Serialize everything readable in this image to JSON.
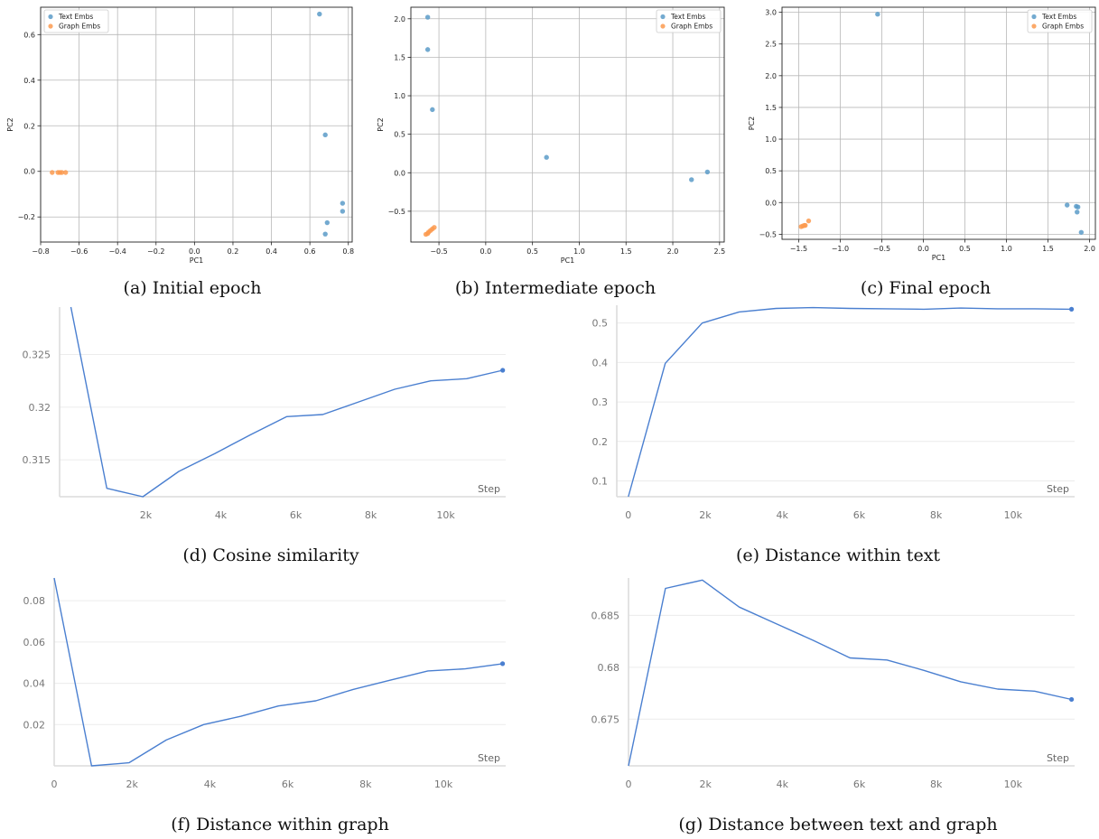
{
  "captions": {
    "a": "(a) Initial epoch",
    "b": "(b) Intermediate epoch",
    "c": "(c) Final epoch",
    "d": "(d) Cosine similarity",
    "e": "(e) Distance within text",
    "f": "(f) Distance within graph",
    "g": "(g) Distance between text and graph"
  },
  "colors": {
    "text_embs": "#5b9bc8",
    "graph_embs": "#fb9a4f",
    "line": "#4a7fd0",
    "grid": "#b8b8b8"
  },
  "chart_data": [
    {
      "id": "a",
      "type": "scatter",
      "xlabel": "PC1",
      "ylabel": "PC2",
      "xlim": [
        -0.8,
        0.82
      ],
      "ylim": [
        -0.31,
        0.72
      ],
      "xticks": [
        -0.8,
        -0.6,
        -0.4,
        -0.2,
        0.0,
        0.2,
        0.4,
        0.6,
        0.8
      ],
      "xtick_labels": [
        "−0.8",
        "−0.6",
        "−0.4",
        "−0.2",
        "0.0",
        "0.2",
        "0.4",
        "0.6",
        "0.8"
      ],
      "yticks": [
        -0.2,
        0.0,
        0.2,
        0.4,
        0.6
      ],
      "ytick_labels": [
        "−0.2",
        "0.0",
        "0.2",
        "0.4",
        "0.6"
      ],
      "grid": true,
      "legend": "top-left",
      "series": [
        {
          "name": "Text Embs",
          "points": [
            [
              0.65,
              0.69
            ],
            [
              0.68,
              0.16
            ],
            [
              0.77,
              -0.14
            ],
            [
              0.77,
              -0.175
            ],
            [
              0.69,
              -0.225
            ],
            [
              0.68,
              -0.275
            ]
          ]
        },
        {
          "name": "Graph Embs",
          "points": [
            [
              -0.74,
              -0.005
            ],
            [
              -0.71,
              -0.005
            ],
            [
              -0.7,
              -0.005
            ],
            [
              -0.69,
              -0.005
            ],
            [
              -0.67,
              -0.005
            ]
          ]
        }
      ]
    },
    {
      "id": "b",
      "type": "scatter",
      "xlabel": "PC1",
      "ylabel": "PC2",
      "xlim": [
        -0.8,
        2.55
      ],
      "ylim": [
        -0.9,
        2.15
      ],
      "xticks": [
        -0.5,
        0.0,
        0.5,
        1.0,
        1.5,
        2.0,
        2.5
      ],
      "xtick_labels": [
        "−0.5",
        "0.0",
        "0.5",
        "1.0",
        "1.5",
        "2.0",
        "2.5"
      ],
      "yticks": [
        -0.5,
        0.0,
        0.5,
        1.0,
        1.5,
        2.0
      ],
      "ytick_labels": [
        "−0.5",
        "0.0",
        "0.5",
        "1.0",
        "1.5",
        "2.0"
      ],
      "grid": true,
      "legend": "top-right",
      "series": [
        {
          "name": "Text Embs",
          "points": [
            [
              -0.62,
              2.02
            ],
            [
              -0.62,
              1.6
            ],
            [
              -0.57,
              0.82
            ],
            [
              0.65,
              0.2
            ],
            [
              2.2,
              -0.09
            ],
            [
              2.37,
              0.01
            ]
          ]
        },
        {
          "name": "Graph Embs",
          "points": [
            [
              -0.64,
              -0.8
            ],
            [
              -0.62,
              -0.79
            ],
            [
              -0.61,
              -0.77
            ],
            [
              -0.59,
              -0.75
            ],
            [
              -0.57,
              -0.73
            ],
            [
              -0.55,
              -0.71
            ]
          ]
        }
      ]
    },
    {
      "id": "c",
      "type": "scatter",
      "xlabel": "PC1",
      "ylabel": "PC2",
      "xlim": [
        -1.7,
        2.07
      ],
      "ylim": [
        -0.58,
        3.08
      ],
      "xticks": [
        -1.5,
        -1.0,
        -0.5,
        0.0,
        0.5,
        1.0,
        1.5,
        2.0
      ],
      "xtick_labels": [
        "−1.5",
        "−1.0",
        "−0.5",
        "0.0",
        "0.5",
        "1.0",
        "1.5",
        "2.0"
      ],
      "yticks": [
        -0.5,
        0.0,
        0.5,
        1.0,
        1.5,
        2.0,
        2.5,
        3.0
      ],
      "ytick_labels": [
        "−0.5",
        "0.0",
        "0.5",
        "1.0",
        "1.5",
        "2.0",
        "2.5",
        "3.0"
      ],
      "grid": true,
      "legend": "top-right",
      "series": [
        {
          "name": "Text Embs",
          "points": [
            [
              -0.55,
              2.97
            ],
            [
              1.73,
              -0.04
            ],
            [
              1.84,
              -0.06
            ],
            [
              1.86,
              -0.07
            ],
            [
              1.85,
              -0.15
            ],
            [
              1.9,
              -0.47
            ]
          ]
        },
        {
          "name": "Graph Embs",
          "points": [
            [
              -1.47,
              -0.38
            ],
            [
              -1.45,
              -0.37
            ],
            [
              -1.43,
              -0.36
            ],
            [
              -1.42,
              -0.36
            ],
            [
              -1.38,
              -0.29
            ]
          ]
        }
      ]
    },
    {
      "id": "d",
      "type": "line",
      "xlabel": "Step",
      "ylabel": "",
      "xlim": [
        -300,
        11600
      ],
      "ylim": [
        0.3115,
        0.3295
      ],
      "xticks": [
        2000,
        4000,
        6000,
        8000,
        10000
      ],
      "xtick_labels": [
        "2k",
        "4k",
        "6k",
        "8k",
        "10k"
      ],
      "yticks": [
        0.315,
        0.32,
        0.325
      ],
      "ytick_labels": [
        "0.315",
        "0.32",
        "0.325"
      ],
      "grid": true,
      "series": [
        {
          "x": [
            0,
            960,
            1920,
            2880,
            3840,
            4800,
            5760,
            6720,
            7680,
            8640,
            9600,
            10560,
            11520
          ],
          "values": [
            0.3295,
            0.3123,
            0.3115,
            0.3139,
            0.3156,
            0.3174,
            0.3191,
            0.3193,
            0.3205,
            0.3217,
            0.3225,
            0.3227,
            0.3235
          ]
        }
      ]
    },
    {
      "id": "e",
      "type": "line",
      "xlabel": "Step",
      "ylabel": "",
      "xlim": [
        -300,
        11600
      ],
      "ylim": [
        0.06,
        0.545
      ],
      "xticks": [
        0,
        2000,
        4000,
        6000,
        8000,
        10000
      ],
      "xtick_labels": [
        "0",
        "2k",
        "4k",
        "6k",
        "8k",
        "10k"
      ],
      "yticks": [
        0.1,
        0.2,
        0.3,
        0.4,
        0.5
      ],
      "ytick_labels": [
        "0.1",
        "0.2",
        "0.3",
        "0.4",
        "0.5"
      ],
      "grid": true,
      "series": [
        {
          "x": [
            0,
            960,
            1920,
            2880,
            3840,
            4800,
            5760,
            6720,
            7680,
            8640,
            9600,
            10560,
            11520
          ],
          "values": [
            0.06,
            0.398,
            0.5,
            0.528,
            0.537,
            0.539,
            0.537,
            0.536,
            0.535,
            0.538,
            0.536,
            0.536,
            0.535
          ]
        }
      ]
    },
    {
      "id": "f",
      "type": "line",
      "xlabel": "Step",
      "ylabel": "",
      "xlim": [
        0,
        11600
      ],
      "ylim": [
        0.0,
        0.091
      ],
      "xticks": [
        0,
        2000,
        4000,
        6000,
        8000,
        10000
      ],
      "xtick_labels": [
        "0",
        "2k",
        "4k",
        "6k",
        "8k",
        "10k"
      ],
      "yticks": [
        0.02,
        0.04,
        0.06,
        0.08
      ],
      "ytick_labels": [
        "0.02",
        "0.04",
        "0.06",
        "0.08"
      ],
      "grid": true,
      "series": [
        {
          "x": [
            0,
            960,
            1920,
            2880,
            3840,
            4800,
            5760,
            6720,
            7680,
            8640,
            9600,
            10560,
            11520
          ],
          "values": [
            0.091,
            0.0,
            0.0015,
            0.0125,
            0.02,
            0.024,
            0.029,
            0.0315,
            0.037,
            0.0415,
            0.046,
            0.047,
            0.0495
          ]
        }
      ]
    },
    {
      "id": "g",
      "type": "line",
      "xlabel": "Step",
      "ylabel": "",
      "xlim": [
        0,
        11600
      ],
      "ylim": [
        0.6705,
        0.6886
      ],
      "xticks": [
        0,
        2000,
        4000,
        6000,
        8000,
        10000
      ],
      "xtick_labels": [
        "0",
        "2k",
        "4k",
        "6k",
        "8k",
        "10k"
      ],
      "yticks": [
        0.675,
        0.68,
        0.685
      ],
      "ytick_labels": [
        "0.675",
        "0.68",
        "0.685"
      ],
      "grid": true,
      "series": [
        {
          "x": [
            0,
            960,
            1920,
            2880,
            3840,
            4800,
            5760,
            6720,
            7680,
            8640,
            9600,
            10560,
            11520
          ],
          "values": [
            0.6705,
            0.6876,
            0.6884,
            0.6858,
            0.6842,
            0.6826,
            0.6809,
            0.6807,
            0.6797,
            0.6786,
            0.6779,
            0.6777,
            0.6769
          ]
        }
      ]
    }
  ]
}
